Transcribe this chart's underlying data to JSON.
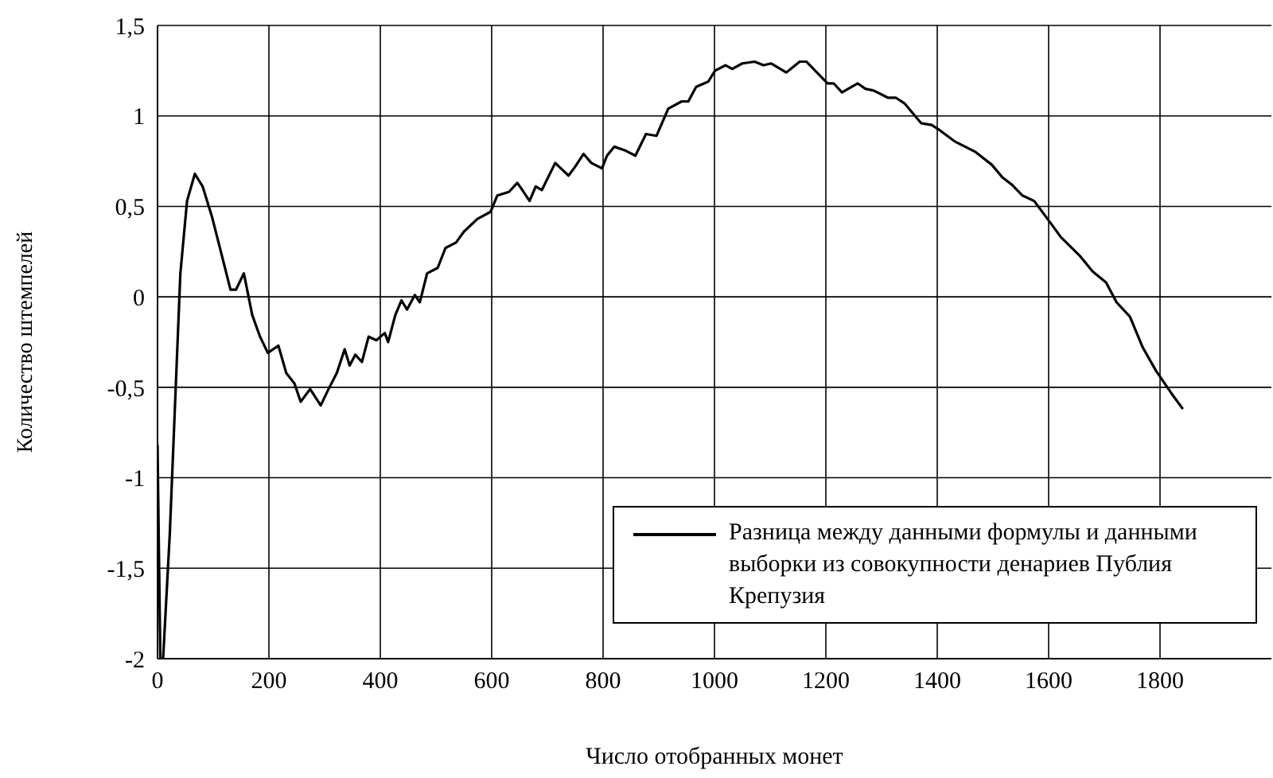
{
  "chart_data": {
    "type": "line",
    "xlabel": "Число отобранных  монет",
    "ylabel": "Количество штемпелей",
    "xlim": [
      0,
      2000
    ],
    "xticks": [
      0,
      200,
      400,
      600,
      800,
      1000,
      1200,
      1400,
      1600,
      1800
    ],
    "ylim": [
      -2,
      1.5
    ],
    "yticks": [
      {
        "value": -2,
        "label": "-2"
      },
      {
        "value": -1.5,
        "label": "-1,5"
      },
      {
        "value": -1,
        "label": "-1"
      },
      {
        "value": -0.5,
        "label": "-0,5"
      },
      {
        "value": 0,
        "label": "0"
      },
      {
        "value": 0.5,
        "label": "0,5"
      },
      {
        "value": 1,
        "label": "1"
      },
      {
        "value": 1.5,
        "label": "1,5"
      }
    ],
    "grid": true,
    "legend": "bottom right",
    "marker": "none",
    "line_style": "solid",
    "series": [
      {
        "name": "Разница между данными формулы и данными выборки из совокупности денариев  Публия Крепузия",
        "color": "#000000",
        "x": [
          0,
          5,
          10,
          22,
          41,
          53,
          67,
          81,
          98,
          117,
          131,
          141,
          155,
          170,
          184,
          198,
          217,
          231,
          246,
          257,
          274,
          293,
          307,
          322,
          336,
          345,
          355,
          367,
          379,
          393,
          408,
          414,
          427,
          438,
          448,
          462,
          471,
          484,
          503,
          517,
          536,
          550,
          574,
          598,
          610,
          631,
          646,
          655,
          668,
          679,
          690,
          714,
          738,
          750,
          765,
          779,
          798,
          807,
          820,
          839,
          858,
          877,
          896,
          917,
          941,
          953,
          967,
          989,
          1001,
          1020,
          1032,
          1050,
          1072,
          1088,
          1102,
          1129,
          1153,
          1165,
          1184,
          1203,
          1214,
          1229,
          1257,
          1271,
          1286,
          1312,
          1326,
          1341,
          1371,
          1390,
          1405,
          1431,
          1469,
          1498,
          1517,
          1534,
          1553,
          1574,
          1603,
          1622,
          1655,
          1679,
          1703,
          1722,
          1746,
          1769,
          1793,
          1822,
          1841
        ],
        "values": [
          -0.82,
          -2,
          -2,
          -1.31,
          0.13,
          0.53,
          0.68,
          0.61,
          0.44,
          0.21,
          0.04,
          0.04,
          0.13,
          -0.1,
          -0.22,
          -0.31,
          -0.27,
          -0.42,
          -0.48,
          -0.58,
          -0.51,
          -0.6,
          -0.51,
          -0.42,
          -0.29,
          -0.38,
          -0.32,
          -0.36,
          -0.22,
          -0.24,
          -0.2,
          -0.25,
          -0.1,
          -0.02,
          -0.07,
          0.01,
          -0.03,
          0.13,
          0.16,
          0.27,
          0.3,
          0.36,
          0.43,
          0.47,
          0.56,
          0.58,
          0.63,
          0.59,
          0.53,
          0.61,
          0.59,
          0.74,
          0.67,
          0.72,
          0.79,
          0.74,
          0.71,
          0.78,
          0.83,
          0.81,
          0.78,
          0.9,
          0.89,
          1.04,
          1.08,
          1.08,
          1.16,
          1.19,
          1.25,
          1.28,
          1.26,
          1.29,
          1.3,
          1.28,
          1.29,
          1.24,
          1.3,
          1.3,
          1.24,
          1.18,
          1.18,
          1.13,
          1.18,
          1.15,
          1.14,
          1.1,
          1.1,
          1.07,
          0.96,
          0.95,
          0.92,
          0.86,
          0.8,
          0.73,
          0.66,
          0.62,
          0.56,
          0.53,
          0.41,
          0.33,
          0.23,
          0.14,
          0.08,
          -0.03,
          -0.11,
          -0.28,
          -0.41,
          -0.54,
          -0.62
        ]
      }
    ]
  }
}
